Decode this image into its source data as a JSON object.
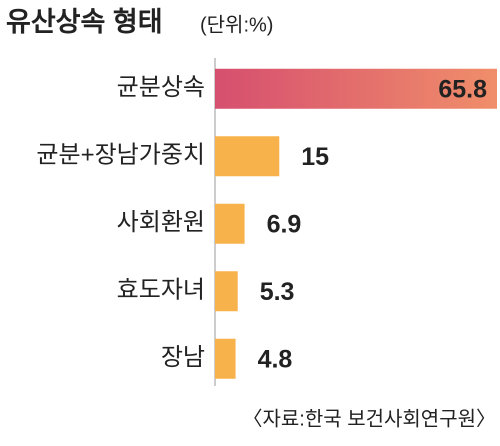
{
  "chart_data": {
    "type": "barh",
    "title": "유산상속 형태",
    "subtitle": "(단위:%)",
    "categories": [
      "균분상속",
      "균분+장남가중치",
      "사회환원",
      "효도자녀",
      "장남"
    ],
    "values": [
      65.8,
      15,
      6.9,
      5.3,
      4.8
    ],
    "colors": [
      "#e26a72",
      "#f8b24c",
      "#f8b24c",
      "#f8b24c",
      "#f8b24c"
    ],
    "source": "〈자료:한국 보건사회연구원〉"
  }
}
